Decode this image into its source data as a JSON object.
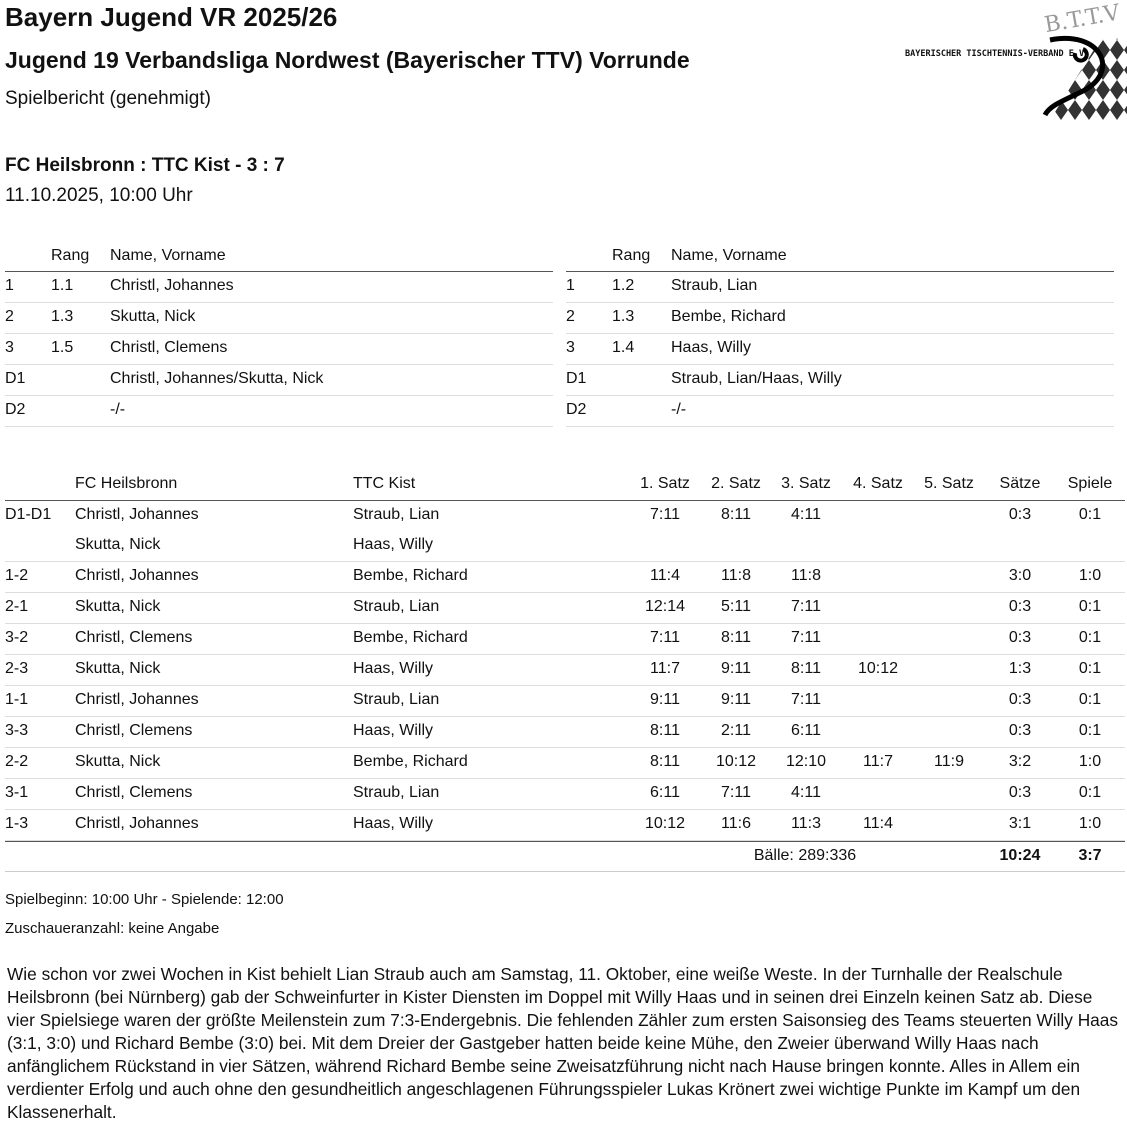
{
  "header": {
    "title": "Bayern Jugend VR 2025/26",
    "league": "Jugend 19 Verbandsliga Nordwest (Bayerischer TTV) Vorrunde",
    "status": "Spielbericht (genehmigt)"
  },
  "logo": {
    "text": "BAYERISCHER TISCHTENNIS-VERBAND E.V.",
    "letters": "B.T.T.V"
  },
  "match": {
    "title": "FC Heilsbronn : TTC Kist - 3 : 7",
    "datetime": "11.10.2025, 10:00 Uhr"
  },
  "lineup_headers": {
    "rang": "Rang",
    "name": "Name, Vorname"
  },
  "home_lineup": [
    {
      "pos": "1",
      "rang": "1.1",
      "name": "Christl, Johannes"
    },
    {
      "pos": "2",
      "rang": "1.3",
      "name": "Skutta, Nick"
    },
    {
      "pos": "3",
      "rang": "1.5",
      "name": "Christl, Clemens"
    },
    {
      "pos": "D1",
      "rang": "",
      "name": "Christl, Johannes/Skutta, Nick"
    },
    {
      "pos": "D2",
      "rang": "",
      "name": "-/-"
    }
  ],
  "away_lineup": [
    {
      "pos": "1",
      "rang": "1.2",
      "name": "Straub, Lian"
    },
    {
      "pos": "2",
      "rang": "1.3",
      "name": "Bembe, Richard"
    },
    {
      "pos": "3",
      "rang": "1.4",
      "name": "Haas, Willy"
    },
    {
      "pos": "D1",
      "rang": "",
      "name": "Straub, Lian/Haas, Willy"
    },
    {
      "pos": "D2",
      "rang": "",
      "name": "-/-"
    }
  ],
  "games_headers": {
    "home": "FC Heilsbronn",
    "away": "TTC Kist",
    "sets": [
      "1. Satz",
      "2. Satz",
      "3. Satz",
      "4. Satz",
      "5. Satz"
    ],
    "saetze": "Sätze",
    "spiele": "Spiele"
  },
  "games": [
    {
      "code": "D1-D1",
      "home": "Christl, Johannes",
      "away": "Straub, Lian",
      "sets": [
        "7:11",
        "8:11",
        "4:11",
        "",
        ""
      ],
      "saetze": "0:3",
      "spiele": "0:1",
      "home2": "Skutta, Nick",
      "away2": "Haas, Willy"
    },
    {
      "code": "1-2",
      "home": "Christl, Johannes",
      "away": "Bembe, Richard",
      "sets": [
        "11:4",
        "11:8",
        "11:8",
        "",
        ""
      ],
      "saetze": "3:0",
      "spiele": "1:0"
    },
    {
      "code": "2-1",
      "home": "Skutta, Nick",
      "away": "Straub, Lian",
      "sets": [
        "12:14",
        "5:11",
        "7:11",
        "",
        ""
      ],
      "saetze": "0:3",
      "spiele": "0:1"
    },
    {
      "code": "3-2",
      "home": "Christl, Clemens",
      "away": "Bembe, Richard",
      "sets": [
        "7:11",
        "8:11",
        "7:11",
        "",
        ""
      ],
      "saetze": "0:3",
      "spiele": "0:1"
    },
    {
      "code": "2-3",
      "home": "Skutta, Nick",
      "away": "Haas, Willy",
      "sets": [
        "11:7",
        "9:11",
        "8:11",
        "10:12",
        ""
      ],
      "saetze": "1:3",
      "spiele": "0:1"
    },
    {
      "code": "1-1",
      "home": "Christl, Johannes",
      "away": "Straub, Lian",
      "sets": [
        "9:11",
        "9:11",
        "7:11",
        "",
        ""
      ],
      "saetze": "0:3",
      "spiele": "0:1"
    },
    {
      "code": "3-3",
      "home": "Christl, Clemens",
      "away": "Haas, Willy",
      "sets": [
        "8:11",
        "2:11",
        "6:11",
        "",
        ""
      ],
      "saetze": "0:3",
      "spiele": "0:1"
    },
    {
      "code": "2-2",
      "home": "Skutta, Nick",
      "away": "Bembe, Richard",
      "sets": [
        "8:11",
        "10:12",
        "12:10",
        "11:7",
        "11:9"
      ],
      "saetze": "3:2",
      "spiele": "1:0"
    },
    {
      "code": "3-1",
      "home": "Christl, Clemens",
      "away": "Straub, Lian",
      "sets": [
        "6:11",
        "7:11",
        "4:11",
        "",
        ""
      ],
      "saetze": "0:3",
      "spiele": "0:1"
    },
    {
      "code": "1-3",
      "home": "Christl, Johannes",
      "away": "Haas, Willy",
      "sets": [
        "10:12",
        "11:6",
        "11:3",
        "11:4",
        ""
      ],
      "saetze": "3:1",
      "spiele": "1:0"
    }
  ],
  "totals": {
    "baelle": "Bälle: 289:336",
    "saetze": "10:24",
    "spiele": "3:7"
  },
  "footer": {
    "times": "Spielbeginn: 10:00 Uhr - Spielende: 12:00",
    "spectators": "Zuschaueranzahl: keine Angabe"
  },
  "report": "Wie schon vor zwei Wochen in Kist behielt Lian Straub auch am Samstag, 11. Oktober, eine weiße Weste. In der Turnhalle der Realschule Heilsbronn (bei Nürnberg) gab der Schweinfurter in Kister Diensten im Doppel mit Willy Haas und in seinen drei Einzeln keinen Satz ab. Diese vier Spielsiege waren der größte Meilenstein zum 7:3-Endergebnis. Die fehlenden Zähler zum ersten Saisonsieg des Teams steuerten Willy Haas (3:1, 3:0) und Richard Bembe (3:0) bei. Mit dem Dreier der Gastgeber hatten beide keine Mühe, den Zweier überwand Willy Haas nach anfänglichem Rückstand in vier Sätzen, während Richard Bembe seine Zweisatzführung nicht nach Hause bringen konnte. Alles in Allem ein verdienter Erfolg und auch ohne den gesundheitlich angeschlagenen Führungsspieler Lukas Krönert zwei wichtige Punkte im Kampf um den Klassenerhalt."
}
